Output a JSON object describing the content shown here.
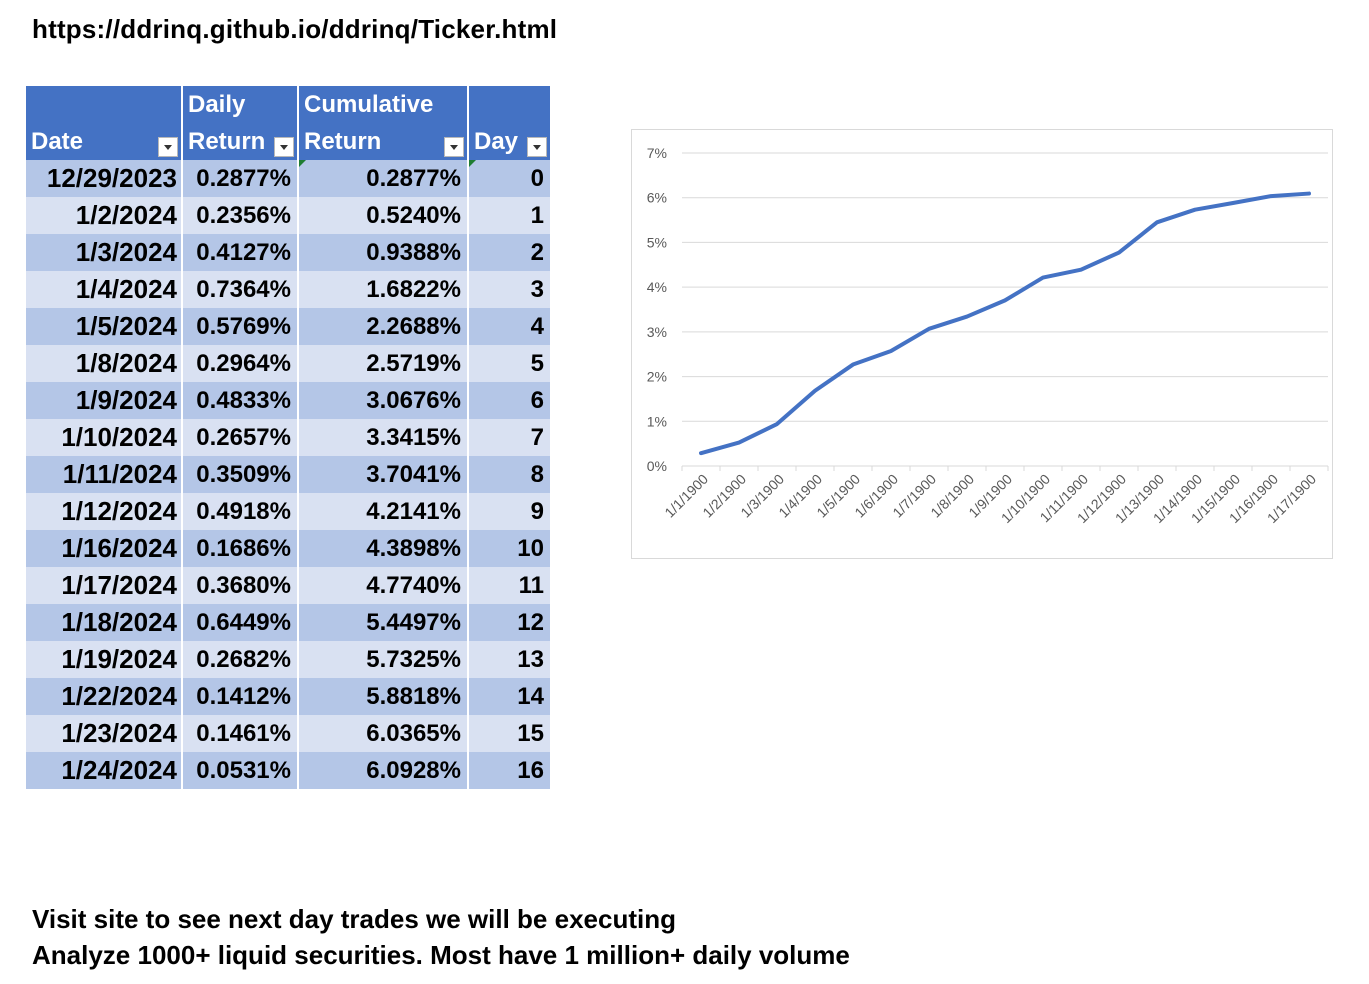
{
  "url_text": "https://ddrinq.github.io/ddrinq/Ticker.html",
  "table": {
    "headers": [
      {
        "line1": "",
        "line2": "Date"
      },
      {
        "line1": "Daily",
        "line2": "Return"
      },
      {
        "line1": "Cumulative",
        "line2": "Return"
      },
      {
        "line1": "",
        "line2": "Day"
      }
    ],
    "rows": [
      [
        "12/29/2023",
        "0.2877%",
        "0.2877%",
        "0"
      ],
      [
        "1/2/2024",
        "0.2356%",
        "0.5240%",
        "1"
      ],
      [
        "1/3/2024",
        "0.4127%",
        "0.9388%",
        "2"
      ],
      [
        "1/4/2024",
        "0.7364%",
        "1.6822%",
        "3"
      ],
      [
        "1/5/2024",
        "0.5769%",
        "2.2688%",
        "4"
      ],
      [
        "1/8/2024",
        "0.2964%",
        "2.5719%",
        "5"
      ],
      [
        "1/9/2024",
        "0.4833%",
        "3.0676%",
        "6"
      ],
      [
        "1/10/2024",
        "0.2657%",
        "3.3415%",
        "7"
      ],
      [
        "1/11/2024",
        "0.3509%",
        "3.7041%",
        "8"
      ],
      [
        "1/12/2024",
        "0.4918%",
        "4.2141%",
        "9"
      ],
      [
        "1/16/2024",
        "0.1686%",
        "4.3898%",
        "10"
      ],
      [
        "1/17/2024",
        "0.3680%",
        "4.7740%",
        "11"
      ],
      [
        "1/18/2024",
        "0.6449%",
        "5.4497%",
        "12"
      ],
      [
        "1/19/2024",
        "0.2682%",
        "5.7325%",
        "13"
      ],
      [
        "1/22/2024",
        "0.1412%",
        "5.8818%",
        "14"
      ],
      [
        "1/23/2024",
        "0.1461%",
        "6.0365%",
        "15"
      ],
      [
        "1/24/2024",
        "0.0531%",
        "6.0928%",
        "16"
      ]
    ],
    "colors": {
      "header": "#4472c4",
      "band_dark": "#b4c6e7",
      "band_light": "#d9e1f2"
    }
  },
  "chart_data": {
    "type": "line",
    "title": "",
    "xlabel": "",
    "ylabel": "",
    "x": [
      "1/1/1900",
      "1/2/1900",
      "1/3/1900",
      "1/4/1900",
      "1/5/1900",
      "1/6/1900",
      "1/7/1900",
      "1/8/1900",
      "1/9/1900",
      "1/10/1900",
      "1/11/1900",
      "1/12/1900",
      "1/13/1900",
      "1/14/1900",
      "1/15/1900",
      "1/16/1900",
      "1/17/1900"
    ],
    "series": [
      {
        "values": [
          0.2877,
          0.524,
          0.9388,
          1.6822,
          2.2688,
          2.5719,
          3.0676,
          3.3415,
          3.7041,
          4.2141,
          4.3898,
          4.774,
          5.4497,
          5.7325,
          5.8818,
          6.0365,
          6.0928
        ],
        "color": "#4472c4"
      }
    ],
    "yticks": [
      "0%",
      "1%",
      "2%",
      "3%",
      "4%",
      "5%",
      "6%",
      "7%"
    ],
    "ylim": [
      0,
      7
    ],
    "grid": true,
    "legend": "none"
  },
  "footer": {
    "line1": "Visit site to see next day trades we will be executing",
    "line2": "Analyze 1000+ liquid securities.  Most have 1 million+ daily volume"
  }
}
